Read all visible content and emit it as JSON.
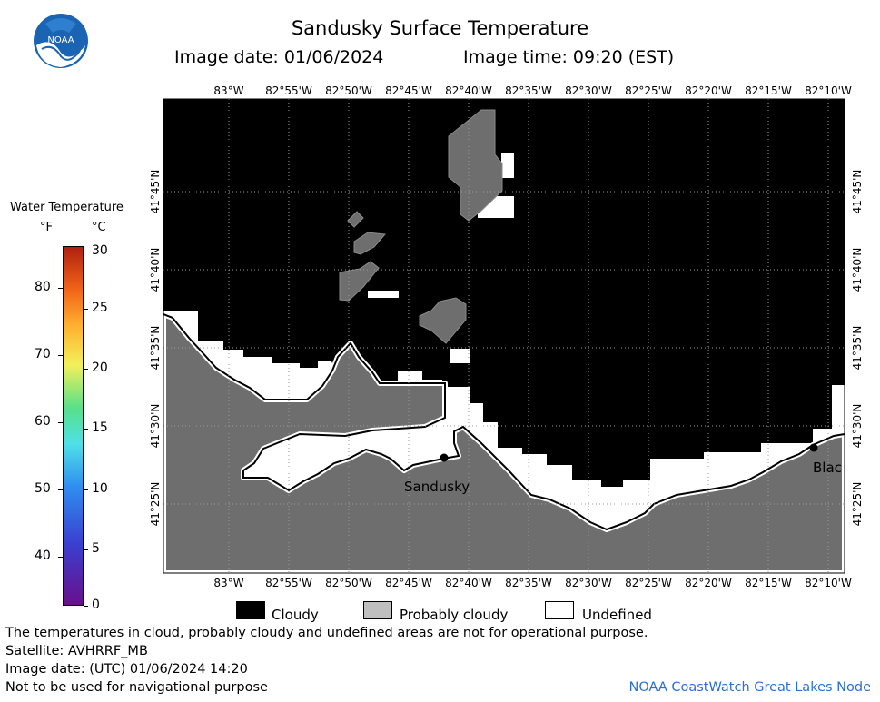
{
  "header": {
    "title": "Sandusky Surface Temperature",
    "image_date": "Image date: 01/06/2024",
    "image_time": "Image time: 09:20 (EST)"
  },
  "logo": {
    "text": "NOAA"
  },
  "colorbar": {
    "title": "Water Temperature",
    "unit_f": "°F",
    "unit_c": "°C",
    "f_ticks": [
      "80",
      "70",
      "60",
      "50",
      "40"
    ],
    "c_ticks": [
      "30",
      "25",
      "20",
      "15",
      "10",
      "5",
      "0"
    ]
  },
  "map": {
    "lon_labels": [
      "83°W",
      "82°55'W",
      "82°50'W",
      "82°45'W",
      "82°40'W",
      "82°35'W",
      "82°30'W",
      "82°25'W",
      "82°20'W",
      "82°15'W",
      "82°10'W"
    ],
    "lat_labels": [
      "41°45'N",
      "41°40'N",
      "41°35'N",
      "41°30'N",
      "41°25'N"
    ],
    "places": {
      "sandusky": "Sandusky",
      "blac": "Blac"
    },
    "colors": {
      "cloudy": "#000000",
      "probably_cloudy": "#6e6e6e",
      "land": "#6e6e6e",
      "undefined": "#ffffff"
    }
  },
  "legend": {
    "cloudy": "Cloudy",
    "probably_cloudy": "Probably cloudy",
    "undefined": "Undefined"
  },
  "footer": {
    "line1": "The temperatures in cloud, probably cloudy and undefined areas are not for operational purpose.",
    "line2": "Satellite: AVHRRF_MB",
    "line3": "Image date: (UTC) 01/06/2024  14:20",
    "line4": "Not to be used for navigational purpose",
    "credit": "NOAA CoastWatch Great Lakes Node"
  }
}
